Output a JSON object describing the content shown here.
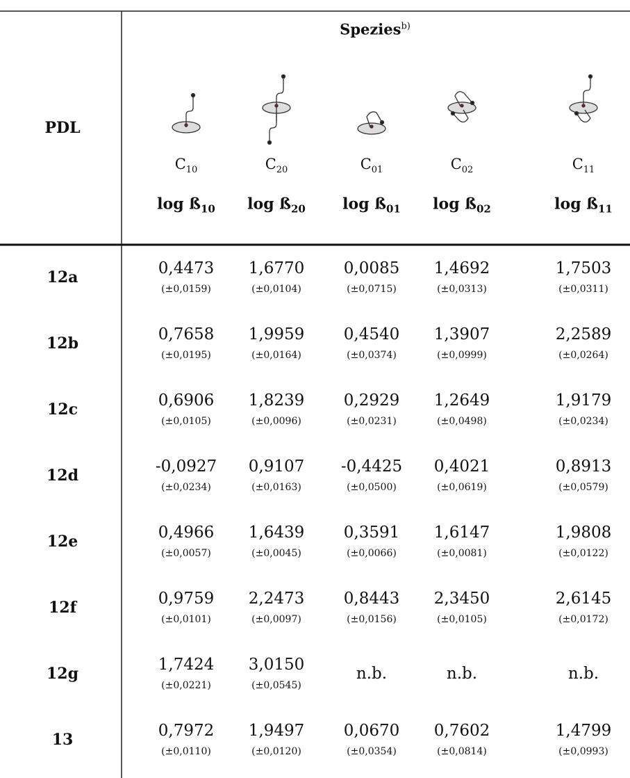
{
  "header": {
    "row_label": "PDL",
    "group": "Spezies",
    "group_note": "b)",
    "species": [
      {
        "symbol": "C",
        "index": "10",
        "constant": "log ß",
        "constant_index": "10"
      },
      {
        "symbol": "C",
        "index": "20",
        "constant": "log ß",
        "constant_index": "20"
      },
      {
        "symbol": "C",
        "index": "01",
        "constant": "log ß",
        "constant_index": "01"
      },
      {
        "symbol": "C",
        "index": "02",
        "constant": "log ß",
        "constant_index": "02"
      },
      {
        "symbol": "C",
        "index": "11",
        "constant": "log ß",
        "constant_index": "11"
      }
    ]
  },
  "rows": [
    {
      "label": "12a",
      "cells": [
        {
          "value": "0,4473",
          "error": "(±0,0159)"
        },
        {
          "value": "1,6770",
          "error": "(±0,0104)"
        },
        {
          "value": "0,0085",
          "error": "(±0,0715)"
        },
        {
          "value": "1,4692",
          "error": "(±0,0313)"
        },
        {
          "value": "1,7503",
          "error": "(±0,0311)"
        }
      ]
    },
    {
      "label": "12b",
      "cells": [
        {
          "value": "0,7658",
          "error": "(±0,0195)"
        },
        {
          "value": "1,9959",
          "error": "(±0,0164)"
        },
        {
          "value": "0,4540",
          "error": "(±0,0374)"
        },
        {
          "value": "1,3907",
          "error": "(±0,0999)"
        },
        {
          "value": "2,2589",
          "error": "(±0,0264)"
        }
      ]
    },
    {
      "label": "12c",
      "cells": [
        {
          "value": "0,6906",
          "error": "(±0,0105)"
        },
        {
          "value": "1,8239",
          "error": "(±0,0096)"
        },
        {
          "value": "0,2929",
          "error": "(±0,0231)"
        },
        {
          "value": "1,2649",
          "error": "(±0,0498)"
        },
        {
          "value": "1,9179",
          "error": "(±0,0234)"
        }
      ]
    },
    {
      "label": "12d",
      "cells": [
        {
          "value": "-0,0927",
          "error": "(±0,0234)"
        },
        {
          "value": "0,9107",
          "error": "(±0,0163)"
        },
        {
          "value": "-0,4425",
          "error": "(±0,0500)"
        },
        {
          "value": "0,4021",
          "error": "(±0,0619)"
        },
        {
          "value": "0,8913",
          "error": "(±0,0579)"
        }
      ]
    },
    {
      "label": "12e",
      "cells": [
        {
          "value": "0,4966",
          "error": "(±0,0057)"
        },
        {
          "value": "1,6439",
          "error": "(±0,0045)"
        },
        {
          "value": "0,3591",
          "error": "(±0,0066)"
        },
        {
          "value": "1,6147",
          "error": "(±0,0081)"
        },
        {
          "value": "1,9808",
          "error": "(±0,0122)"
        }
      ]
    },
    {
      "label": "12f",
      "cells": [
        {
          "value": "0,9759",
          "error": "(±0,0101)"
        },
        {
          "value": "2,2473",
          "error": "(±0,0097)"
        },
        {
          "value": "0,8443",
          "error": "(±0,0156)"
        },
        {
          "value": "2,3450",
          "error": "(±0,0105)"
        },
        {
          "value": "2,6145",
          "error": "(±0,0172)"
        }
      ]
    },
    {
      "label": "12g",
      "cells": [
        {
          "value": "1,7424",
          "error": "(±0,0221)"
        },
        {
          "value": "3,0150",
          "error": "(±0,0545)"
        },
        {
          "value": "n.b."
        },
        {
          "value": "n.b."
        },
        {
          "value": "n.b."
        }
      ]
    },
    {
      "label": "13",
      "cells": [
        {
          "value": "0,7972",
          "error": "(±0,0110)"
        },
        {
          "value": "1,9497",
          "error": "(±0,0120)"
        },
        {
          "value": "0,0670",
          "error": "(±0,0354)"
        },
        {
          "value": "0,7602",
          "error": "(±0,0814)"
        },
        {
          "value": "1,4799",
          "error": "(±0,0993)"
        }
      ]
    }
  ]
}
